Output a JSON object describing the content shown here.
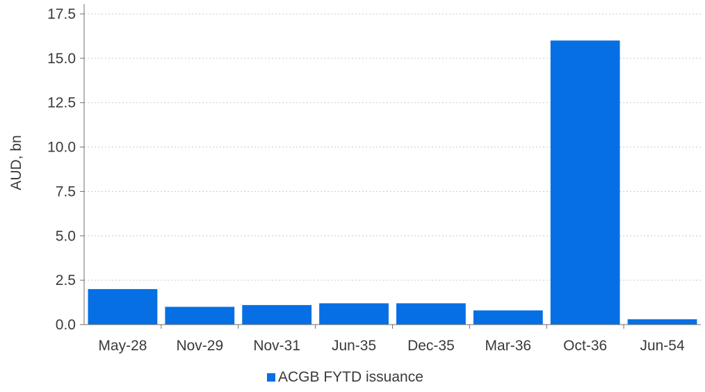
{
  "chart_data": {
    "type": "bar",
    "categories": [
      "May-28",
      "Nov-29",
      "Nov-31",
      "Jun-35",
      "Dec-35",
      "Mar-36",
      "Oct-36",
      "Jun-54"
    ],
    "series": [
      {
        "name": "ACGB FYTD issuance",
        "values": [
          2.0,
          1.0,
          1.1,
          1.2,
          1.2,
          0.8,
          16.0,
          0.3
        ]
      }
    ],
    "ylabel": "AUD, bn",
    "xlabel": "",
    "ylim": [
      0,
      17.5
    ],
    "yticks": [
      "0.0",
      "2.5",
      "5.0",
      "7.5",
      "10.0",
      "12.5",
      "15.0",
      "17.5"
    ],
    "grid": true,
    "legend": "bottom-center",
    "colors": {
      "bar": "#066fe4",
      "grid": "#c8c8c8",
      "axis": "#6e6e6e"
    }
  }
}
